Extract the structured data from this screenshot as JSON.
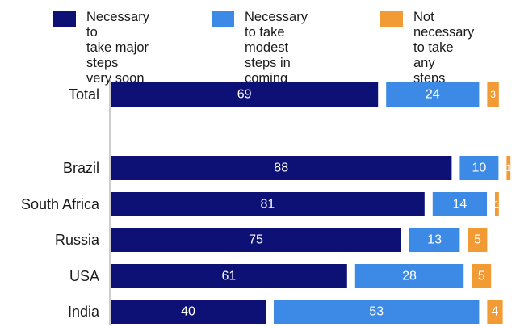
{
  "chart_data": {
    "type": "bar",
    "orientation": "horizontal",
    "stacked": true,
    "legend_position": "top",
    "grid": false,
    "categories": [
      "Total",
      "Brazil",
      "South Africa",
      "Russia",
      "USA",
      "India"
    ],
    "series": [
      {
        "name": "Necessary to take major steps very soon",
        "display_label": "Necessary to\ntake major steps\nvery soon",
        "color": "#0d1175",
        "label_color": "#ffffff",
        "values": [
          69,
          88,
          81,
          75,
          61,
          40
        ]
      },
      {
        "name": "Necessary to take modest steps in coming years",
        "display_label": "Necessary to take\nmodest steps in\ncoming years",
        "color": "#3d8ae6",
        "label_color": "#ffffff",
        "values": [
          24,
          10,
          14,
          13,
          28,
          53
        ]
      },
      {
        "name": "Not necessary to take any steps",
        "display_label": "Not necessary\nto take any\nsteps",
        "color": "#f29a33",
        "label_color": "#ffffff",
        "values": [
          3,
          1,
          1,
          5,
          5,
          4
        ]
      }
    ],
    "segment_labels": [
      [
        "69",
        "24",
        "3"
      ],
      [
        "88",
        "10",
        "1"
      ],
      [
        "81",
        "14",
        "1"
      ],
      [
        "75",
        "13",
        "5"
      ],
      [
        "61",
        "28",
        "5"
      ],
      [
        "40",
        "53",
        "4"
      ]
    ]
  }
}
